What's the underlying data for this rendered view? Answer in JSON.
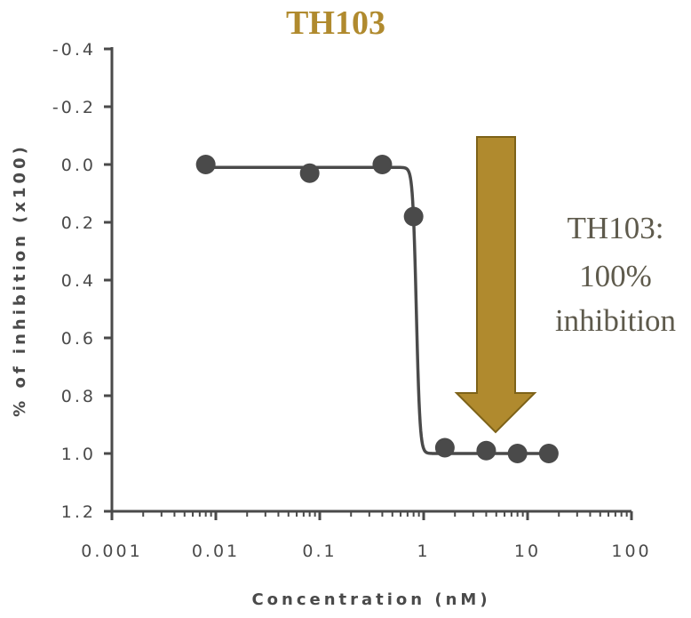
{
  "colors": {
    "accent": "#b08a2e",
    "accent_dark": "#7d6218",
    "ink": "#4a4a4a",
    "annotation": "#5e5a4c"
  },
  "chart_data": {
    "type": "scatter",
    "title": "TH103",
    "xlabel": "Concentration (nM)",
    "ylabel": "% of inhibition (x100)",
    "xscale": "log",
    "xlim": [
      0.001,
      100
    ],
    "ylim": [
      -0.4,
      1.2
    ],
    "y_axis_inverted": true,
    "x_tick_labels": [
      "0.001",
      "0.01",
      "0.1",
      "1",
      "10",
      "100"
    ],
    "x_tick_values": [
      0.001,
      0.01,
      0.1,
      1,
      10,
      100
    ],
    "y_tick_labels": [
      "-0.4",
      "-0.2",
      "0.0",
      "0.2",
      "0.4",
      "0.6",
      "0.8",
      "1.0",
      "1.2"
    ],
    "y_tick_values": [
      -0.4,
      -0.2,
      0.0,
      0.2,
      0.4,
      0.6,
      0.8,
      1.0,
      1.2
    ],
    "series": [
      {
        "name": "TH103",
        "points": [
          {
            "x": 0.008,
            "y": 0.0
          },
          {
            "x": 0.08,
            "y": 0.03
          },
          {
            "x": 0.4,
            "y": 0.0
          },
          {
            "x": 0.8,
            "y": 0.18
          },
          {
            "x": 1.6,
            "y": 0.98
          },
          {
            "x": 4.0,
            "y": 0.99
          },
          {
            "x": 8.0,
            "y": 1.0
          },
          {
            "x": 16.0,
            "y": 1.0
          }
        ],
        "fit": {
          "model": "sigmoid",
          "bottom": 0.01,
          "top": 1.0,
          "ic50": 0.85,
          "hill": 25
        }
      }
    ],
    "annotation": {
      "lines": [
        "TH103:",
        "100%",
        "inhibition"
      ]
    }
  }
}
